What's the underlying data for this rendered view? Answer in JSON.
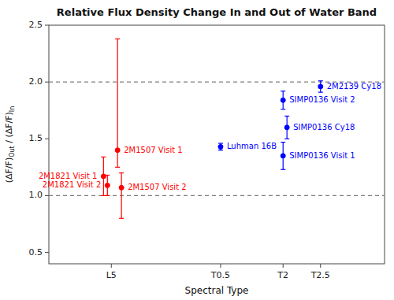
{
  "chart_data": {
    "type": "scatter",
    "title": "Relative Flux Density Change In and Out of Water Band",
    "xlabel": "Spectral Type",
    "ylabel": "(ΔF/F)Out / (ΔF/F)In",
    "x": [
      1.0,
      1.05,
      1.18,
      1.23,
      2.5,
      3.3,
      3.35,
      3.3,
      3.78
    ],
    "values": [
      1.17,
      1.09,
      1.4,
      1.07,
      1.43,
      1.35,
      1.6,
      1.84,
      1.96
    ],
    "error_low": [
      0.17,
      0.09,
      0.15,
      0.27,
      0.03,
      0.12,
      0.1,
      0.08,
      0.05
    ],
    "error_high": [
      0.17,
      0.09,
      0.98,
      0.13,
      0.03,
      0.12,
      0.1,
      0.08,
      0.05
    ],
    "labels": [
      "2M1821 Visit 1",
      "2M1821 Visit 2",
      "2M1507 Visit 1",
      "2M1507 Visit 2",
      "Luhman 16B",
      "SIMP0136 Visit 1",
      "SIMP0136 Cy18",
      "SIMP0136 Visit 2",
      "2M2139 Cy18"
    ],
    "colors": [
      "red",
      "red",
      "red",
      "red",
      "blue",
      "blue",
      "blue",
      "blue",
      "blue"
    ],
    "hlines": [
      1.0,
      2.0
    ],
    "xlim": [
      0.3,
      4.6
    ],
    "ylim": [
      0.4,
      2.5
    ],
    "xticks": [
      {
        "value": 1.1,
        "label": "L5"
      },
      {
        "value": 2.5,
        "label": "T0.5"
      },
      {
        "value": 3.3,
        "label": "T2"
      },
      {
        "value": 3.78,
        "label": "T2.5"
      }
    ],
    "yticks": [
      0.5,
      {
        "value": 1,
        "label": "1.0"
      },
      1.5,
      {
        "value": 2,
        "label": "2.0"
      },
      2.5
    ],
    "grid": false,
    "marker": "circle"
  }
}
